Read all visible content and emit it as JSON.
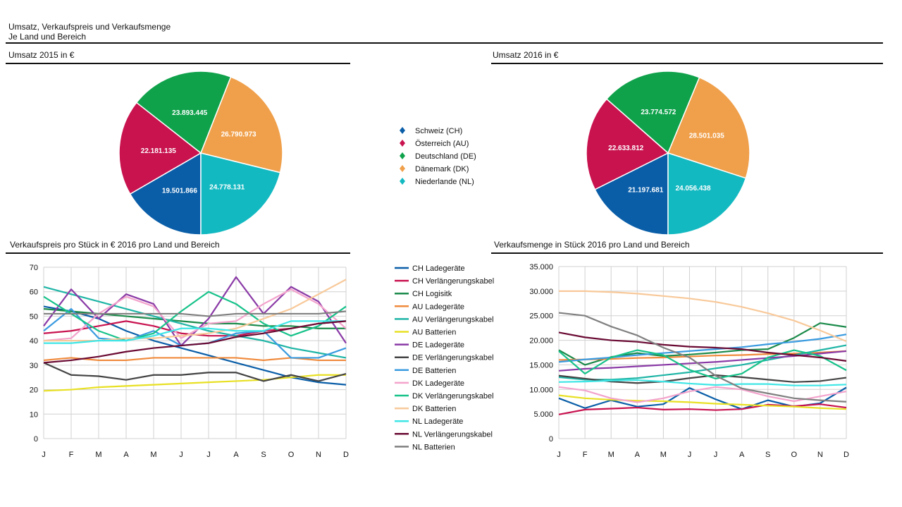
{
  "header": {
    "title": "Umsatz, Verkaufspreis und Verkaufsmenge",
    "subtitle": "Je Land und Bereich"
  },
  "colors": {
    "CH": "#0a5ea8",
    "AU": "#c8134f",
    "DE": "#0fa24b",
    "DK": "#f0a04b",
    "NL": "#13b9c1"
  },
  "pie_legend": [
    {
      "label": "Schweiz (CH)",
      "color": "#0a5ea8"
    },
    {
      "label": "Österreich (AU)",
      "color": "#c8134f"
    },
    {
      "label": "Deutschland (DE)",
      "color": "#0fa24b"
    },
    {
      "label": "Dänemark (DK)",
      "color": "#f0a04b"
    },
    {
      "label": "Niederlande (NL)",
      "color": "#13b9c1"
    }
  ],
  "line_legend": [
    {
      "label": "CH Ladegeräte",
      "color": "#0a5ea8"
    },
    {
      "label": "CH Verlängerungskabel",
      "color": "#c8134f"
    },
    {
      "label": "CH Logisitk",
      "color": "#1b8a4a"
    },
    {
      "label": "AU Ladegeräte",
      "color": "#f08a3c"
    },
    {
      "label": "AU Verlängerungskabel",
      "color": "#1fb5a6"
    },
    {
      "label": "AU Batterien",
      "color": "#e8e024"
    },
    {
      "label": "DE Ladegeräte",
      "color": "#8a3aa6"
    },
    {
      "label": "DE Verlängerungskabel",
      "color": "#444444"
    },
    {
      "label": "DE Batterien",
      "color": "#3a9be0"
    },
    {
      "label": "DK Ladegeräte",
      "color": "#f3a3cc"
    },
    {
      "label": "DK Verlängerungskabel",
      "color": "#17c28a"
    },
    {
      "label": "DK Batterien",
      "color": "#f8c99a"
    },
    {
      "label": "NL Ladegeräte",
      "color": "#3fe6e6"
    },
    {
      "label": "NL Verlängerungskabel",
      "color": "#6a0a33"
    },
    {
      "label": "NL Batterien",
      "color": "#808080"
    }
  ],
  "chart_data": [
    {
      "type": "pie",
      "title": "Umsatz 2015 in €",
      "slices": [
        {
          "name": "Schweiz (CH)",
          "value": 19501866,
          "label": "19.501.866",
          "color": "#0a5ea8"
        },
        {
          "name": "Österreich (AU)",
          "value": 22181135,
          "label": "22.181.135",
          "color": "#c8134f"
        },
        {
          "name": "Deutschland (DE)",
          "value": 23893445,
          "label": "23.893.445",
          "color": "#0fa24b"
        },
        {
          "name": "Dänemark (DK)",
          "value": 26790973,
          "label": "26.790.973",
          "color": "#f0a04b"
        },
        {
          "name": "Niederlande (NL)",
          "value": 24778131,
          "label": "24.778.131",
          "color": "#13b9c1"
        }
      ]
    },
    {
      "type": "pie",
      "title": "Umsatz 2016 in €",
      "slices": [
        {
          "name": "Schweiz (CH)",
          "value": 21197681,
          "label": "21.197.681",
          "color": "#0a5ea8"
        },
        {
          "name": "Österreich (AU)",
          "value": 22633812,
          "label": "22.633.812",
          "color": "#c8134f"
        },
        {
          "name": "Deutschland (DE)",
          "value": 23774572,
          "label": "23.774.572",
          "color": "#0fa24b"
        },
        {
          "name": "Dänemark (DK)",
          "value": 28501035,
          "label": "28.501.035",
          "color": "#f0a04b"
        },
        {
          "name": "Niederlande (NL)",
          "value": 24056438,
          "label": "24.056.438",
          "color": "#13b9c1"
        }
      ]
    },
    {
      "type": "line",
      "title": "Verkaufspreis pro Stück in € 2016 pro Land und Bereich",
      "categories": [
        "J",
        "F",
        "M",
        "A",
        "M",
        "J",
        "J",
        "A",
        "S",
        "O",
        "N",
        "D"
      ],
      "ylim": [
        0,
        70
      ],
      "yticks": [
        0,
        10,
        20,
        30,
        40,
        50,
        60,
        70
      ],
      "ytick_labels": [
        "0",
        "10",
        "20",
        "30",
        "40",
        "50",
        "60",
        "70"
      ],
      "grid": true,
      "series": [
        {
          "name": "CH Ladegeräte",
          "color": "#0a5ea8",
          "values": [
            54,
            52,
            49,
            44,
            40,
            37,
            34,
            31,
            28,
            25,
            23,
            22
          ]
        },
        {
          "name": "CH Verlängerungskabel",
          "color": "#c8134f",
          "values": [
            43,
            44,
            46,
            48,
            46,
            43,
            42,
            42,
            44,
            45,
            47,
            48
          ]
        },
        {
          "name": "CH Logisitk",
          "color": "#1b8a4a",
          "values": [
            53,
            52,
            51,
            50,
            49,
            48,
            47,
            47,
            46,
            46,
            45,
            45
          ]
        },
        {
          "name": "AU Ladegeräte",
          "color": "#f08a3c",
          "values": [
            32,
            33,
            32,
            32,
            33,
            33,
            33,
            33,
            32,
            33,
            32,
            32
          ]
        },
        {
          "name": "AU Verlängerungskabel",
          "color": "#1fb5a6",
          "values": [
            62,
            59,
            56,
            53,
            50,
            47,
            44,
            42,
            40,
            37,
            35,
            33
          ]
        },
        {
          "name": "AU Batterien",
          "color": "#e8e024",
          "values": [
            19.5,
            20,
            21,
            21.5,
            22,
            22.5,
            23,
            23.5,
            24,
            25,
            26,
            26
          ]
        },
        {
          "name": "DE Ladegeräte",
          "color": "#8a3aa6",
          "values": [
            46,
            61,
            49,
            59,
            55,
            38,
            49,
            66,
            51,
            62,
            56,
            39
          ]
        },
        {
          "name": "DE Verlängerungskabel",
          "color": "#444444",
          "values": [
            31,
            26,
            25.5,
            24,
            26,
            26,
            27,
            27,
            23.5,
            26,
            23.5,
            26.5
          ]
        },
        {
          "name": "DE Batterien",
          "color": "#3a9be0",
          "values": [
            44,
            53,
            41,
            40,
            44,
            38,
            39,
            43,
            44,
            33,
            33,
            37
          ]
        },
        {
          "name": "DK Ladegeräte",
          "color": "#f3a3cc",
          "values": [
            40,
            41,
            51,
            58,
            54,
            41,
            47,
            48,
            55,
            61,
            55,
            45
          ]
        },
        {
          "name": "DK Verlängerungskabel",
          "color": "#17c28a",
          "values": [
            58,
            51,
            44,
            40,
            43,
            52,
            60,
            55,
            47,
            42,
            46,
            54
          ]
        },
        {
          "name": "DK Batterien",
          "color": "#f8c99a",
          "values": [
            40,
            40,
            40,
            41,
            41,
            42,
            43,
            45,
            49,
            53,
            59,
            65
          ]
        },
        {
          "name": "NL Ladegeräte",
          "color": "#3fe6e6",
          "values": [
            39,
            39,
            40,
            40,
            42,
            45,
            45,
            44,
            44,
            48,
            48,
            48
          ]
        },
        {
          "name": "NL Verlängerungskabel",
          "color": "#6a0a33",
          "values": [
            31,
            32,
            33.5,
            35.5,
            37,
            38,
            39,
            41.5,
            43,
            45,
            47,
            48
          ]
        },
        {
          "name": "NL Batterien",
          "color": "#808080",
          "values": [
            51,
            51,
            51,
            51,
            51,
            51,
            50,
            51,
            51,
            51,
            51,
            52
          ]
        }
      ]
    },
    {
      "type": "line",
      "title": "Verkaufsmenge in Stück 2016 pro Land und Bereich",
      "categories": [
        "J",
        "F",
        "M",
        "A",
        "M",
        "J",
        "J",
        "A",
        "S",
        "O",
        "N",
        "D"
      ],
      "ylim": [
        0,
        35000
      ],
      "yticks": [
        0,
        5000,
        10000,
        15000,
        20000,
        25000,
        30000,
        35000
      ],
      "ytick_labels": [
        "0",
        "5.000",
        "10.000",
        "15.000",
        "20.000",
        "25.000",
        "30.000",
        "35.000"
      ],
      "grid": true,
      "series": [
        {
          "name": "CH Ladegeräte",
          "color": "#0a5ea8",
          "values": [
            8200,
            6200,
            7800,
            6500,
            7000,
            10300,
            8000,
            6000,
            7800,
            6500,
            7200,
            10400
          ]
        },
        {
          "name": "CH Verlängerungskabel",
          "color": "#c8134f",
          "values": [
            4900,
            5900,
            6100,
            6300,
            5900,
            6000,
            5800,
            6000,
            6900,
            6600,
            7000,
            6300
          ]
        },
        {
          "name": "CH Logisitk",
          "color": "#1b8a4a",
          "values": [
            18000,
            15000,
            16600,
            17400,
            16800,
            17100,
            17500,
            18000,
            18200,
            20500,
            23500,
            22700
          ]
        },
        {
          "name": "AU Ladegeräte",
          "color": "#f08a3c",
          "values": [
            16000,
            16100,
            16200,
            16400,
            16500,
            16700,
            16900,
            17000,
            17200,
            17300,
            17500,
            17800
          ]
        },
        {
          "name": "AU Verlängerungskabel",
          "color": "#1fb5a6",
          "values": [
            12500,
            12000,
            12000,
            12300,
            12900,
            13500,
            14300,
            15000,
            16000,
            17000,
            18000,
            19000
          ]
        },
        {
          "name": "AU Batterien",
          "color": "#e8e024",
          "values": [
            8800,
            8200,
            7900,
            7700,
            7600,
            7400,
            7100,
            6900,
            6700,
            6500,
            6200,
            6000
          ]
        },
        {
          "name": "DE Ladegeräte",
          "color": "#8a3aa6",
          "values": [
            13800,
            14200,
            14400,
            14700,
            15000,
            15300,
            15600,
            16000,
            16400,
            16800,
            17300,
            17800
          ]
        },
        {
          "name": "DE Verlängerungskabel",
          "color": "#444444",
          "values": [
            12800,
            12200,
            11600,
            11300,
            11600,
            12300,
            12900,
            12500,
            12000,
            11500,
            11700,
            12400
          ]
        },
        {
          "name": "DE Batterien",
          "color": "#3a9be0",
          "values": [
            15600,
            16100,
            16500,
            17000,
            17400,
            17800,
            18200,
            18600,
            19200,
            19700,
            20300,
            21200
          ]
        },
        {
          "name": "DK Ladegeräte",
          "color": "#f3a3cc",
          "values": [
            10500,
            9800,
            8200,
            7400,
            8200,
            9600,
            10500,
            10000,
            8600,
            7600,
            8600,
            9600
          ]
        },
        {
          "name": "DK Verlängerungskabel",
          "color": "#17c28a",
          "values": [
            17800,
            13200,
            16500,
            18000,
            17000,
            14000,
            12200,
            13200,
            16500,
            18000,
            16800,
            13900
          ]
        },
        {
          "name": "DK Batterien",
          "color": "#f8c99a",
          "values": [
            30000,
            30000,
            29800,
            29500,
            29000,
            28500,
            27800,
            26800,
            25500,
            24000,
            22000,
            19800
          ]
        },
        {
          "name": "NL Ladegeräte",
          "color": "#3fe6e6",
          "values": [
            11500,
            11600,
            11800,
            11900,
            11600,
            11200,
            10900,
            11100,
            11100,
            10800,
            10800,
            11000
          ]
        },
        {
          "name": "NL Verlängerungskabel",
          "color": "#6a0a33",
          "values": [
            21600,
            20600,
            20000,
            19700,
            19100,
            18700,
            18500,
            18200,
            17500,
            17000,
            16500,
            15800
          ]
        },
        {
          "name": "NL Batterien",
          "color": "#808080",
          "values": [
            25600,
            25000,
            22800,
            21000,
            18500,
            16500,
            12800,
            10200,
            9200,
            8200,
            7800,
            7500
          ]
        }
      ]
    }
  ]
}
